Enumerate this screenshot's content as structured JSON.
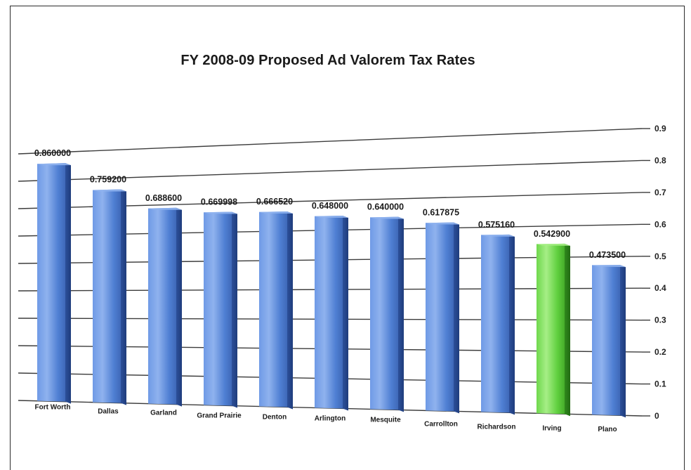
{
  "chart_data": {
    "type": "bar",
    "title": "FY 2008-09 Proposed Ad Valorem Tax Rates",
    "xlabel": "",
    "ylabel": "",
    "ylim": [
      0,
      0.9
    ],
    "yticks": [
      "0",
      "0.1",
      "0.2",
      "0.3",
      "0.4",
      "0.5",
      "0.6",
      "0.7",
      "0.8",
      "0.9"
    ],
    "grid": true,
    "legend": "none",
    "categories": [
      "Fort Worth",
      "Dallas",
      "Garland",
      "Grand Prairie",
      "Denton",
      "Arlington",
      "Mesquite",
      "Carrollton",
      "Richardson",
      "Irving",
      "Plano"
    ],
    "values": [
      0.86,
      0.7592,
      0.6886,
      0.669998,
      0.66652,
      0.648,
      0.64,
      0.617875,
      0.57516,
      0.5429,
      0.4735
    ],
    "value_labels": [
      "0.860000",
      "0.759200",
      "0.688600",
      "0.669998",
      "0.666520",
      "0.648000",
      "0.640000",
      "0.617875",
      "0.575160",
      "0.542900",
      "0.473500"
    ],
    "highlight": "Irving",
    "colors": {
      "bar": "#4f7fd3",
      "bar_dark": "#2c4f9a",
      "bar_light": "#8fb2ee",
      "highlight": "#5fcf3e",
      "highlight_dark": "#2f8a1c",
      "highlight_light": "#a6ee86",
      "grid": "#3c3c3c"
    }
  }
}
